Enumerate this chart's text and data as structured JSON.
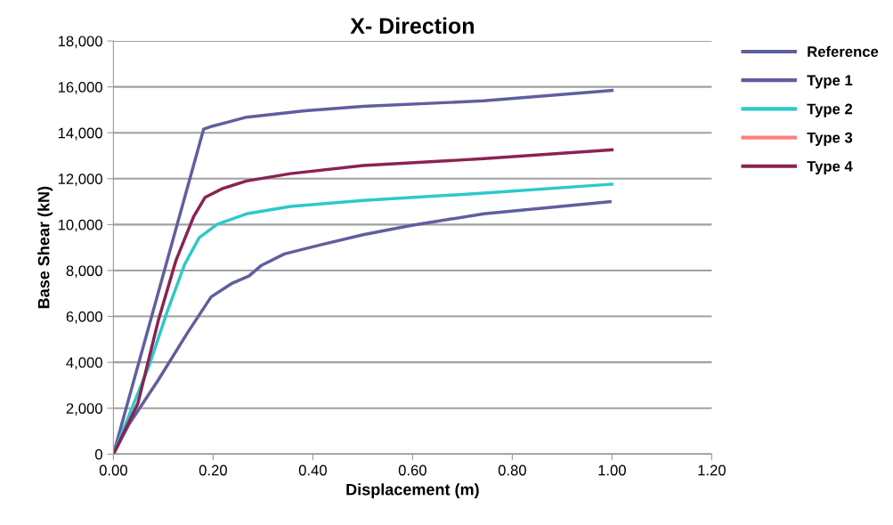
{
  "chart_data": {
    "type": "line",
    "title": "X- Direction",
    "xlabel": "Displacement (m)",
    "ylabel": "Base Shear (kN)",
    "xlim": [
      0,
      1.2
    ],
    "ylim": [
      0,
      18000
    ],
    "xticks": [
      {
        "value": 0,
        "label": "0.00"
      },
      {
        "value": 0.2,
        "label": "0.20"
      },
      {
        "value": 0.4,
        "label": "0.40"
      },
      {
        "value": 0.6,
        "label": "0.60"
      },
      {
        "value": 0.8,
        "label": "0.80"
      },
      {
        "value": 1.0,
        "label": "1.00"
      },
      {
        "value": 1.2,
        "label": "1.20"
      }
    ],
    "yticks": [
      {
        "value": 0,
        "label": "0"
      },
      {
        "value": 2000,
        "label": "2,000"
      },
      {
        "value": 4000,
        "label": "4,000"
      },
      {
        "value": 6000,
        "label": "6,000"
      },
      {
        "value": 8000,
        "label": "8,000"
      },
      {
        "value": 10000,
        "label": "10,000"
      },
      {
        "value": 12000,
        "label": "12,000"
      },
      {
        "value": 14000,
        "label": "14,000"
      },
      {
        "value": 16000,
        "label": "16,000"
      },
      {
        "value": 18000,
        "label": "18,000"
      }
    ],
    "grid": "y",
    "legend": "right",
    "marker": "none",
    "line_style": "solid",
    "series": [
      {
        "name": "Reference",
        "color": "#5f5f9f",
        "x": [
          0,
          0.031,
          0.09,
          0.149,
          0.196,
          0.237,
          0.272,
          0.296,
          0.343,
          0.414,
          0.501,
          0.596,
          0.743,
          0.996
        ],
        "values": [
          0,
          1290,
          3230,
          5300,
          6850,
          7430,
          7760,
          8210,
          8720,
          9110,
          9560,
          9960,
          10470,
          11000
        ]
      },
      {
        "name": "Type 1",
        "color": "#5f5f9f",
        "x": [
          0,
          0.181,
          0.199,
          0.267,
          0.384,
          0.501,
          0.743,
          1.0
        ],
        "values": [
          0,
          14160,
          14290,
          14680,
          14960,
          15150,
          15390,
          15840
        ]
      },
      {
        "name": "Type 2",
        "color": "#2ec9c9",
        "x": [
          0,
          0.072,
          0.108,
          0.143,
          0.172,
          0.208,
          0.267,
          0.355,
          0.501,
          0.743,
          1.0
        ],
        "values": [
          0,
          3880,
          6210,
          8270,
          9430,
          10010,
          10470,
          10790,
          11050,
          11370,
          11760
        ]
      },
      {
        "name": "Type 3",
        "color": "#ff7f7f"
      },
      {
        "name": "Type 4",
        "color": "#8b2252",
        "x": [
          0,
          0.049,
          0.09,
          0.125,
          0.161,
          0.184,
          0.219,
          0.267,
          0.355,
          0.501,
          0.743,
          1.0
        ],
        "values": [
          0,
          2200,
          5820,
          8410,
          10350,
          11190,
          11570,
          11900,
          12220,
          12570,
          12870,
          13260
        ]
      }
    ]
  }
}
